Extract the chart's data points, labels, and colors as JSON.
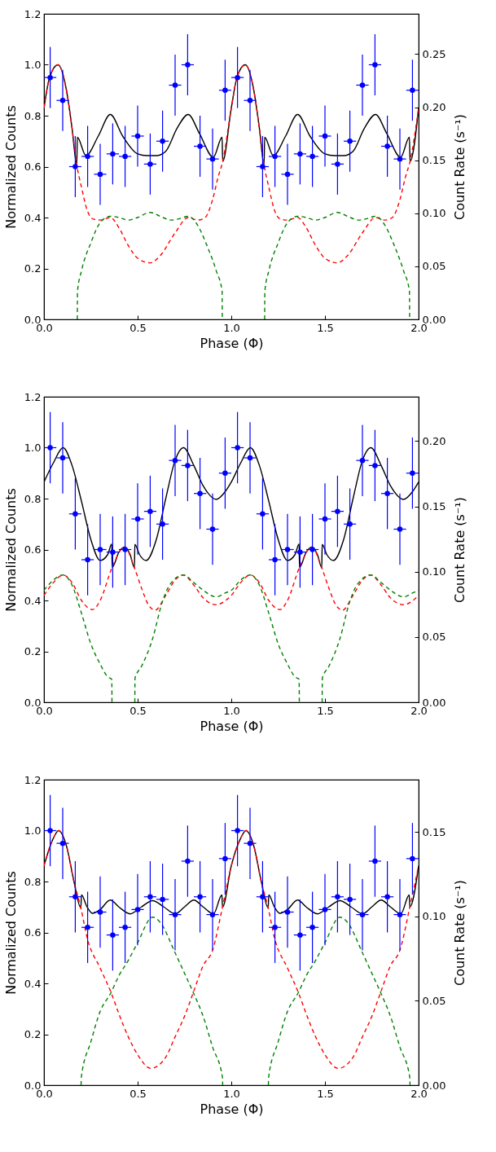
{
  "chart_data": [
    {
      "type": "line",
      "xlabel": "Phase (Φ)",
      "ylabel": "Normalized Counts",
      "y2label": "Count Rate (s⁻¹)",
      "xlim": [
        0,
        2
      ],
      "xticks": [
        {
          "value": 0,
          "label": "0.0"
        },
        {
          "value": 0.5,
          "label": "0.5"
        },
        {
          "value": 1,
          "label": "1.0"
        },
        {
          "value": 1.5,
          "label": "1.5"
        },
        {
          "value": 2,
          "label": "2.0"
        }
      ],
      "ylim": [
        0,
        1.2
      ],
      "yticks": [
        {
          "value": 0,
          "label": "0.0"
        },
        {
          "value": 0.2,
          "label": "0.2"
        },
        {
          "value": 0.4,
          "label": "0.4"
        },
        {
          "value": 0.6,
          "label": "0.6"
        },
        {
          "value": 0.8,
          "label": "0.8"
        },
        {
          "value": 1,
          "label": "1.0"
        },
        {
          "value": 1.2,
          "label": "1.2"
        }
      ],
      "y2lim": [
        0,
        0.288
      ],
      "y2ticks": [
        {
          "value": 0,
          "label": "0.00"
        },
        {
          "value": 0.05,
          "label": "0.05"
        },
        {
          "value": 0.1,
          "label": "0.10"
        },
        {
          "value": 0.15,
          "label": "0.15"
        },
        {
          "value": 0.2,
          "label": "0.20"
        },
        {
          "value": 0.25,
          "label": "0.25"
        }
      ],
      "series": [
        {
          "type": "line",
          "color": "#000000",
          "line_style": "solid",
          "x": [
            0,
            0.03,
            0.075,
            0.12,
            0.15,
            0.175,
            0.178,
            0.224,
            0.29,
            0.354,
            0.42,
            0.5,
            0.55,
            0.6,
            0.65,
            0.71,
            0.77,
            0.83,
            0.904,
            0.951,
            0.954,
            1.0,
            1.03,
            1.075,
            1.12,
            1.15,
            1.175,
            1.178,
            1.224,
            1.29,
            1.354,
            1.42,
            1.5,
            1.55,
            1.6,
            1.65,
            1.71,
            1.77,
            1.83,
            1.904,
            1.951,
            1.954,
            2.0
          ],
          "values": [
            0.83,
            0.95,
            1.0,
            0.9,
            0.75,
            0.607,
            0.715,
            0.643,
            0.72,
            0.805,
            0.72,
            0.65,
            0.643,
            0.643,
            0.66,
            0.75,
            0.805,
            0.73,
            0.637,
            0.715,
            0.62,
            0.83,
            0.95,
            1.0,
            0.9,
            0.75,
            0.607,
            0.715,
            0.643,
            0.72,
            0.805,
            0.72,
            0.65,
            0.643,
            0.643,
            0.66,
            0.75,
            0.805,
            0.73,
            0.637,
            0.715,
            0.62,
            0.83
          ]
        },
        {
          "type": "line",
          "color": "#ff0000",
          "line_style": "dashed",
          "x": [
            0,
            0.03,
            0.075,
            0.12,
            0.15,
            0.175,
            0.2,
            0.23,
            0.26,
            0.3,
            0.354,
            0.4,
            0.45,
            0.5,
            0.566,
            0.62,
            0.7,
            0.77,
            0.82,
            0.86,
            0.9,
            0.93,
            0.954,
            1.0,
            1.03,
            1.075,
            1.12,
            1.15,
            1.175,
            1.2,
            1.23,
            1.26,
            1.3,
            1.354,
            1.4,
            1.45,
            1.5,
            1.566,
            1.62,
            1.7,
            1.77,
            1.82,
            1.86,
            1.9,
            1.93,
            1.954,
            2.0
          ],
          "values": [
            0.83,
            0.95,
            1.0,
            0.9,
            0.75,
            0.607,
            0.52,
            0.43,
            0.395,
            0.39,
            0.4,
            0.36,
            0.29,
            0.24,
            0.222,
            0.25,
            0.34,
            0.4,
            0.39,
            0.4,
            0.47,
            0.56,
            0.62,
            0.83,
            0.95,
            1.0,
            0.9,
            0.75,
            0.607,
            0.52,
            0.43,
            0.395,
            0.39,
            0.4,
            0.36,
            0.29,
            0.24,
            0.222,
            0.25,
            0.34,
            0.4,
            0.39,
            0.4,
            0.47,
            0.56,
            0.62,
            0.83
          ]
        },
        {
          "type": "line",
          "color": "#008000",
          "line_style": "dashed",
          "x": [
            0.178,
            0.179,
            0.2,
            0.25,
            0.3,
            0.354,
            0.4,
            0.45,
            0.5,
            0.566,
            0.62,
            0.68,
            0.72,
            0.77,
            0.82,
            0.87,
            0.92,
            0.951,
            0.952,
            1.0,
            1.178,
            1.179,
            1.2,
            1.25,
            1.3,
            1.354,
            1.4,
            1.45,
            1.5,
            1.566,
            1.62,
            1.68,
            1.72,
            1.77,
            1.82,
            1.87,
            1.92,
            1.951,
            1.952
          ],
          "values": [
            0,
            0.11,
            0.19,
            0.3,
            0.38,
            0.405,
            0.4,
            0.39,
            0.4,
            0.42,
            0.405,
            0.39,
            0.395,
            0.405,
            0.37,
            0.29,
            0.19,
            0.11,
            0,
            null,
            0,
            0.11,
            0.19,
            0.3,
            0.38,
            0.405,
            0.4,
            0.39,
            0.4,
            0.42,
            0.405,
            0.39,
            0.395,
            0.405,
            0.37,
            0.29,
            0.19,
            0.11,
            0
          ]
        },
        {
          "type": "scatter",
          "color": "#0000ff",
          "marker": "circle",
          "x": [
            0.033,
            0.1,
            0.167,
            0.233,
            0.3,
            0.367,
            0.433,
            0.5,
            0.567,
            0.633,
            0.7,
            0.767,
            0.833,
            0.9,
            0.967,
            1.033,
            1.1,
            1.167,
            1.233,
            1.3,
            1.367,
            1.433,
            1.5,
            1.567,
            1.633,
            1.7,
            1.767,
            1.833,
            1.9,
            1.967
          ],
          "values": [
            0.95,
            0.86,
            0.6,
            0.64,
            0.57,
            0.65,
            0.64,
            0.72,
            0.61,
            0.7,
            0.92,
            1.0,
            0.68,
            0.63,
            0.9,
            0.95,
            0.86,
            0.6,
            0.64,
            0.57,
            0.65,
            0.64,
            0.72,
            0.61,
            0.7,
            0.92,
            1.0,
            0.68,
            0.63,
            0.9
          ],
          "errors": [
            0.12,
            0.12,
            0.12,
            0.12,
            0.12,
            0.12,
            0.12,
            0.12,
            0.12,
            0.12,
            0.12,
            0.12,
            0.12,
            0.12,
            0.12,
            0.12,
            0.12,
            0.12,
            0.12,
            0.12,
            0.12,
            0.12,
            0.12,
            0.12,
            0.12,
            0.12,
            0.12,
            0.12,
            0.12,
            0.12
          ],
          "xerrors": [
            0.033,
            0.033,
            0.033,
            0.033,
            0.033,
            0.033,
            0.033,
            0.033,
            0.033,
            0.033,
            0.033,
            0.033,
            0.033,
            0.033,
            0.033,
            0.033,
            0.033,
            0.033,
            0.033,
            0.033,
            0.033,
            0.033,
            0.033,
            0.033,
            0.033,
            0.033,
            0.033,
            0.033,
            0.033,
            0.033
          ]
        }
      ]
    },
    {
      "type": "line",
      "xlabel": "Phase (Φ)",
      "ylabel": "Normalized Counts",
      "y2label": "Count Rate (s⁻¹)",
      "xlim": [
        0,
        2
      ],
      "xticks": [
        {
          "value": 0,
          "label": "0.0"
        },
        {
          "value": 0.5,
          "label": "0.5"
        },
        {
          "value": 1,
          "label": "1.0"
        },
        {
          "value": 1.5,
          "label": "1.5"
        },
        {
          "value": 2,
          "label": "2.0"
        }
      ],
      "ylim": [
        0,
        1.2
      ],
      "yticks": [
        {
          "value": 0,
          "label": "0.0"
        },
        {
          "value": 0.2,
          "label": "0.2"
        },
        {
          "value": 0.4,
          "label": "0.4"
        },
        {
          "value": 0.6,
          "label": "0.6"
        },
        {
          "value": 0.8,
          "label": "0.8"
        },
        {
          "value": 1,
          "label": "1.0"
        },
        {
          "value": 1.2,
          "label": "1.2"
        }
      ],
      "y2lim": [
        0,
        0.234
      ],
      "y2ticks": [
        {
          "value": 0,
          "label": "0.00"
        },
        {
          "value": 0.05,
          "label": "0.05"
        },
        {
          "value": 0.1,
          "label": "0.10"
        },
        {
          "value": 0.15,
          "label": "0.15"
        },
        {
          "value": 0.2,
          "label": "0.20"
        }
      ],
      "series": [
        {
          "type": "line",
          "color": "#000000",
          "line_style": "solid",
          "x": [
            0,
            0.05,
            0.102,
            0.15,
            0.2,
            0.25,
            0.3,
            0.34,
            0.362,
            0.364,
            0.4,
            0.43,
            0.46,
            0.483,
            0.485,
            0.51,
            0.545,
            0.6,
            0.65,
            0.7,
            0.745,
            0.8,
            0.85,
            0.92,
            0.97,
            1.0,
            1.05,
            1.102,
            1.15,
            1.2,
            1.25,
            1.3,
            1.34,
            1.362,
            1.364,
            1.4,
            1.43,
            1.46,
            1.483,
            1.485,
            1.51,
            1.545,
            1.6,
            1.65,
            1.7,
            1.745,
            1.8,
            1.85,
            1.92,
            1.97,
            2.0
          ],
          "values": [
            0.865,
            0.94,
            1.0,
            0.93,
            0.79,
            0.64,
            0.557,
            0.58,
            0.622,
            0.53,
            0.59,
            0.61,
            0.58,
            0.528,
            0.62,
            0.58,
            0.557,
            0.64,
            0.8,
            0.95,
            1.0,
            0.93,
            0.85,
            0.797,
            0.83,
            0.865,
            0.94,
            1.0,
            0.93,
            0.79,
            0.64,
            0.557,
            0.58,
            0.622,
            0.53,
            0.59,
            0.61,
            0.58,
            0.528,
            0.62,
            0.58,
            0.557,
            0.64,
            0.8,
            0.95,
            1.0,
            0.93,
            0.85,
            0.797,
            0.83,
            0.865
          ]
        },
        {
          "type": "line",
          "color": "#ff0000",
          "line_style": "dashed",
          "x": [
            0,
            0.05,
            0.102,
            0.15,
            0.2,
            0.26,
            0.3,
            0.364,
            0.43,
            0.483,
            0.52,
            0.56,
            0.594,
            0.65,
            0.7,
            0.745,
            0.8,
            0.85,
            0.92,
            0.97,
            1.0,
            1.05,
            1.102,
            1.15,
            1.2,
            1.26,
            1.3,
            1.364,
            1.43,
            1.483,
            1.52,
            1.56,
            1.594,
            1.65,
            1.7,
            1.745,
            1.8,
            1.85,
            1.92,
            1.97,
            2.0
          ],
          "values": [
            0.42,
            0.47,
            0.5,
            0.47,
            0.4,
            0.364,
            0.4,
            0.53,
            0.61,
            0.528,
            0.45,
            0.38,
            0.362,
            0.42,
            0.48,
            0.5,
            0.46,
            0.41,
            0.383,
            0.4,
            0.42,
            0.47,
            0.5,
            0.47,
            0.4,
            0.364,
            0.4,
            0.53,
            0.61,
            0.528,
            0.45,
            0.38,
            0.362,
            0.42,
            0.48,
            0.5,
            0.46,
            0.41,
            0.383,
            0.4,
            0.42
          ]
        },
        {
          "type": "line",
          "color": "#008000",
          "line_style": "dashed",
          "x": [
            0,
            0.05,
            0.102,
            0.15,
            0.2,
            0.25,
            0.3,
            0.34,
            0.362,
            0.363,
            0.42,
            0.485,
            0.486,
            0.52,
            0.58,
            0.63,
            0.67,
            0.745,
            0.8,
            0.85,
            0.92,
            0.97,
            1.0,
            1.05,
            1.102,
            1.15,
            1.2,
            1.25,
            1.3,
            1.34,
            1.362,
            1.363,
            1.42,
            1.485,
            1.486,
            1.52,
            1.58,
            1.63,
            1.67,
            1.745,
            1.8,
            1.85,
            1.92,
            1.97,
            2.0
          ],
          "values": [
            0.44,
            0.48,
            0.5,
            0.46,
            0.35,
            0.23,
            0.15,
            0.1,
            0.09,
            0,
            null,
            0,
            0.095,
            0.14,
            0.25,
            0.39,
            0.46,
            0.5,
            0.47,
            0.44,
            0.414,
            0.43,
            0.44,
            0.48,
            0.5,
            0.46,
            0.35,
            0.23,
            0.15,
            0.1,
            0.09,
            0,
            null,
            0,
            0.095,
            0.14,
            0.25,
            0.39,
            0.46,
            0.5,
            0.47,
            0.44,
            0.414,
            0.43,
            0.44
          ]
        },
        {
          "type": "scatter",
          "color": "#0000ff",
          "marker": "circle",
          "x": [
            0.033,
            0.1,
            0.167,
            0.233,
            0.3,
            0.367,
            0.433,
            0.5,
            0.567,
            0.633,
            0.7,
            0.767,
            0.833,
            0.9,
            0.967,
            1.033,
            1.1,
            1.167,
            1.233,
            1.3,
            1.367,
            1.433,
            1.5,
            1.567,
            1.633,
            1.7,
            1.767,
            1.833,
            1.9,
            1.967
          ],
          "values": [
            1.0,
            0.96,
            0.74,
            0.56,
            0.6,
            0.59,
            0.6,
            0.72,
            0.75,
            0.7,
            0.95,
            0.93,
            0.82,
            0.68,
            0.9,
            1.0,
            0.96,
            0.74,
            0.56,
            0.6,
            0.59,
            0.6,
            0.72,
            0.75,
            0.7,
            0.95,
            0.93,
            0.82,
            0.68,
            0.9
          ],
          "errors": [
            0.14,
            0.14,
            0.14,
            0.14,
            0.14,
            0.14,
            0.14,
            0.14,
            0.14,
            0.14,
            0.14,
            0.14,
            0.14,
            0.14,
            0.14,
            0.14,
            0.14,
            0.14,
            0.14,
            0.14,
            0.14,
            0.14,
            0.14,
            0.14,
            0.14,
            0.14,
            0.14,
            0.14,
            0.14,
            0.14
          ],
          "xerrors": [
            0.033,
            0.033,
            0.033,
            0.033,
            0.033,
            0.033,
            0.033,
            0.033,
            0.033,
            0.033,
            0.033,
            0.033,
            0.033,
            0.033,
            0.033,
            0.033,
            0.033,
            0.033,
            0.033,
            0.033,
            0.033,
            0.033,
            0.033,
            0.033,
            0.033,
            0.033,
            0.033,
            0.033,
            0.033,
            0.033
          ]
        }
      ]
    },
    {
      "type": "line",
      "xlabel": "Phase (Φ)",
      "ylabel": "Normalized Counts",
      "y2label": "Count Rate (s⁻¹)",
      "xlim": [
        0,
        2
      ],
      "xticks": [
        {
          "value": 0,
          "label": "0.0"
        },
        {
          "value": 0.5,
          "label": "0.5"
        },
        {
          "value": 1,
          "label": "1.0"
        },
        {
          "value": 1.5,
          "label": "1.5"
        },
        {
          "value": 2,
          "label": "2.0"
        }
      ],
      "ylim": [
        0,
        1.2
      ],
      "yticks": [
        {
          "value": 0,
          "label": "0.0"
        },
        {
          "value": 0.2,
          "label": "0.2"
        },
        {
          "value": 0.4,
          "label": "0.4"
        },
        {
          "value": 0.6,
          "label": "0.6"
        },
        {
          "value": 0.8,
          "label": "0.8"
        },
        {
          "value": 1,
          "label": "1.0"
        },
        {
          "value": 1.2,
          "label": "1.2"
        }
      ],
      "y2lim": [
        0,
        0.181
      ],
      "y2ticks": [
        {
          "value": 0,
          "label": "0.00"
        },
        {
          "value": 0.05,
          "label": "0.05"
        },
        {
          "value": 0.1,
          "label": "0.10"
        },
        {
          "value": 0.15,
          "label": "0.15"
        }
      ],
      "series": [
        {
          "type": "line",
          "color": "#000000",
          "line_style": "solid",
          "x": [
            0,
            0.05,
            0.078,
            0.12,
            0.16,
            0.197,
            0.2,
            0.23,
            0.26,
            0.3,
            0.354,
            0.4,
            0.46,
            0.52,
            0.58,
            0.64,
            0.7,
            0.75,
            0.8,
            0.85,
            0.905,
            0.95,
            0.953,
            1.0,
            1.05,
            1.078,
            1.12,
            1.16,
            1.197,
            1.2,
            1.23,
            1.26,
            1.3,
            1.354,
            1.4,
            1.46,
            1.52,
            1.58,
            1.64,
            1.7,
            1.75,
            1.8,
            1.85,
            1.905,
            1.95,
            1.953,
            2.0
          ],
          "values": [
            0.862,
            0.97,
            1.0,
            0.94,
            0.8,
            0.696,
            0.747,
            0.7,
            0.675,
            0.69,
            0.727,
            0.7,
            0.673,
            0.7,
            0.725,
            0.7,
            0.673,
            0.7,
            0.727,
            0.7,
            0.673,
            0.747,
            0.7,
            0.862,
            0.97,
            1.0,
            0.94,
            0.8,
            0.696,
            0.747,
            0.7,
            0.675,
            0.69,
            0.727,
            0.7,
            0.673,
            0.7,
            0.725,
            0.7,
            0.673,
            0.7,
            0.727,
            0.7,
            0.673,
            0.747,
            0.7,
            0.862
          ]
        },
        {
          "type": "line",
          "color": "#ff0000",
          "line_style": "dashed",
          "x": [
            0,
            0.05,
            0.078,
            0.12,
            0.16,
            0.197,
            0.23,
            0.3,
            0.358,
            0.4,
            0.45,
            0.5,
            0.57,
            0.65,
            0.7,
            0.75,
            0.8,
            0.85,
            0.9,
            0.953,
            1.0,
            1.05,
            1.078,
            1.12,
            1.16,
            1.197,
            1.23,
            1.3,
            1.358,
            1.4,
            1.45,
            1.5,
            1.57,
            1.65,
            1.7,
            1.75,
            1.8,
            1.85,
            1.9,
            1.953,
            2.0
          ],
          "values": [
            0.862,
            0.97,
            1.0,
            0.94,
            0.8,
            0.696,
            0.58,
            0.46,
            0.364,
            0.28,
            0.19,
            0.12,
            0.066,
            0.11,
            0.19,
            0.27,
            0.37,
            0.47,
            0.53,
            0.7,
            0.862,
            0.97,
            1.0,
            0.94,
            0.8,
            0.696,
            0.58,
            0.46,
            0.364,
            0.28,
            0.19,
            0.12,
            0.066,
            0.11,
            0.19,
            0.27,
            0.37,
            0.47,
            0.53,
            0.7,
            0.862
          ]
        },
        {
          "type": "line",
          "color": "#008000",
          "line_style": "dashed",
          "x": [
            0.198,
            0.199,
            0.25,
            0.3,
            0.358,
            0.4,
            0.45,
            0.5,
            0.58,
            0.62,
            0.7,
            0.75,
            0.797,
            0.85,
            0.9,
            0.953,
            0.954,
            1.0,
            1.198,
            1.199,
            1.25,
            1.3,
            1.358,
            1.4,
            1.45,
            1.5,
            1.58,
            1.62,
            1.7,
            1.75,
            1.797,
            1.85,
            1.9,
            1.953,
            1.954
          ],
          "values": [
            0,
            0.03,
            0.17,
            0.29,
            0.364,
            0.43,
            0.49,
            0.56,
            0.66,
            0.64,
            0.52,
            0.44,
            0.364,
            0.27,
            0.15,
            0.03,
            0,
            null,
            0,
            0.03,
            0.17,
            0.29,
            0.364,
            0.43,
            0.49,
            0.56,
            0.66,
            0.64,
            0.52,
            0.44,
            0.364,
            0.27,
            0.15,
            0.03,
            0
          ]
        },
        {
          "type": "scatter",
          "color": "#0000ff",
          "marker": "circle",
          "x": [
            0.033,
            0.1,
            0.167,
            0.233,
            0.3,
            0.367,
            0.433,
            0.5,
            0.567,
            0.633,
            0.7,
            0.767,
            0.833,
            0.9,
            0.967,
            1.033,
            1.1,
            1.167,
            1.233,
            1.3,
            1.367,
            1.433,
            1.5,
            1.567,
            1.633,
            1.7,
            1.767,
            1.833,
            1.9,
            1.967
          ],
          "values": [
            1.0,
            0.95,
            0.74,
            0.62,
            0.68,
            0.59,
            0.62,
            0.69,
            0.74,
            0.73,
            0.67,
            0.88,
            0.74,
            0.67,
            0.89,
            1.0,
            0.95,
            0.74,
            0.62,
            0.68,
            0.59,
            0.62,
            0.69,
            0.74,
            0.73,
            0.67,
            0.88,
            0.74,
            0.67,
            0.89
          ],
          "errors": [
            0.14,
            0.14,
            0.14,
            0.14,
            0.14,
            0.14,
            0.14,
            0.14,
            0.14,
            0.14,
            0.14,
            0.14,
            0.14,
            0.14,
            0.14,
            0.14,
            0.14,
            0.14,
            0.14,
            0.14,
            0.14,
            0.14,
            0.14,
            0.14,
            0.14,
            0.14,
            0.14,
            0.14,
            0.14,
            0.14
          ],
          "xerrors": [
            0.033,
            0.033,
            0.033,
            0.033,
            0.033,
            0.033,
            0.033,
            0.033,
            0.033,
            0.033,
            0.033,
            0.033,
            0.033,
            0.033,
            0.033,
            0.033,
            0.033,
            0.033,
            0.033,
            0.033,
            0.033,
            0.033,
            0.033,
            0.033,
            0.033,
            0.033,
            0.033,
            0.033,
            0.033,
            0.033
          ]
        }
      ]
    }
  ]
}
